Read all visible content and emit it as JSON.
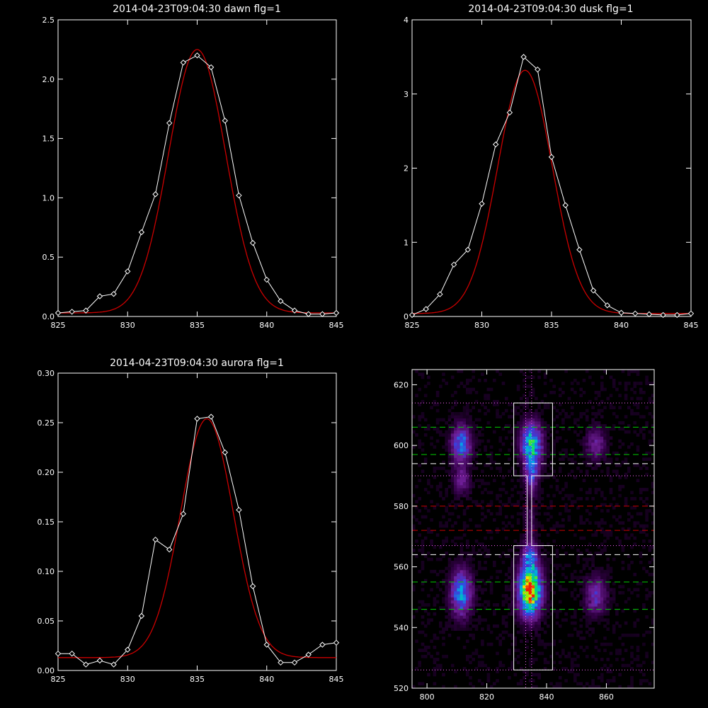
{
  "colors": {
    "background": "#000000",
    "axes": "#ffffff",
    "observed": "#ffffff",
    "fit": "#cc0000",
    "green_line": "#00cc00",
    "red_line": "#cc0000",
    "white_line": "#ffffff",
    "dotted_line": "#ff66ff"
  },
  "chart_data": [
    {
      "type": "line",
      "title": "2014-04-23T09:04:30 dawn flg=1",
      "xlim": [
        825,
        845
      ],
      "ylim": [
        0,
        2.5
      ],
      "xticks": [
        "825",
        "830",
        "835",
        "840",
        "845"
      ],
      "yticks": [
        "0.0",
        "0.5",
        "1.0",
        "1.5",
        "2.0",
        "2.5"
      ],
      "xtick_values": [
        825,
        830,
        835,
        840,
        845
      ],
      "ytick_values": [
        0,
        0.5,
        1.0,
        1.5,
        2.0,
        2.5
      ],
      "observed": {
        "x": [
          825,
          826,
          827,
          828,
          829,
          830,
          831,
          832,
          833,
          834,
          835,
          836,
          837,
          838,
          839,
          840,
          841,
          842,
          843,
          844,
          845
        ],
        "y": [
          0.03,
          0.04,
          0.05,
          0.17,
          0.19,
          0.38,
          0.71,
          1.03,
          1.63,
          2.14,
          2.2,
          2.1,
          1.65,
          1.02,
          0.62,
          0.31,
          0.13,
          0.05,
          0.02,
          0.02,
          0.03
        ]
      },
      "fit": {
        "amplitude": 2.22,
        "center": 835.0,
        "sigma": 2.05,
        "offset": 0.03
      }
    },
    {
      "type": "line",
      "title": "2014-04-23T09:04:30 dusk flg=1",
      "xlim": [
        825,
        845
      ],
      "ylim": [
        0,
        4
      ],
      "xticks": [
        "825",
        "830",
        "835",
        "840",
        "845"
      ],
      "yticks": [
        "0",
        "1",
        "2",
        "3",
        "4"
      ],
      "xtick_values": [
        825,
        830,
        835,
        840,
        845
      ],
      "ytick_values": [
        0,
        1,
        2,
        3,
        4
      ],
      "observed": {
        "x": [
          825,
          826,
          827,
          828,
          829,
          830,
          831,
          832,
          833,
          834,
          835,
          836,
          837,
          838,
          839,
          840,
          841,
          842,
          843,
          844,
          845
        ],
        "y": [
          0.02,
          0.1,
          0.3,
          0.7,
          0.9,
          1.52,
          2.32,
          2.75,
          3.5,
          3.33,
          2.15,
          1.5,
          0.9,
          0.35,
          0.15,
          0.05,
          0.04,
          0.03,
          0.02,
          0.02,
          0.04
        ]
      },
      "fit": {
        "amplitude": 3.28,
        "center": 833.1,
        "sigma": 1.95,
        "offset": 0.04
      }
    },
    {
      "type": "line",
      "title": "2014-04-23T09:04:30 aurora flg=1",
      "xlim": [
        825,
        845
      ],
      "ylim": [
        0,
        0.3
      ],
      "xticks": [
        "825",
        "830",
        "835",
        "840",
        "845"
      ],
      "yticks": [
        "0.00",
        "0.05",
        "0.10",
        "0.15",
        "0.20",
        "0.25",
        "0.30"
      ],
      "xtick_values": [
        825,
        830,
        835,
        840,
        845
      ],
      "ytick_values": [
        0,
        0.05,
        0.1,
        0.15,
        0.2,
        0.25,
        0.3
      ],
      "observed": {
        "x": [
          825,
          826,
          827,
          828,
          829,
          830,
          831,
          832,
          833,
          834,
          835,
          836,
          837,
          838,
          839,
          840,
          841,
          842,
          843,
          844,
          845
        ],
        "y": [
          0.017,
          0.017,
          0.006,
          0.01,
          0.006,
          0.021,
          0.055,
          0.132,
          0.122,
          0.158,
          0.254,
          0.256,
          0.22,
          0.162,
          0.085,
          0.026,
          0.008,
          0.008,
          0.016,
          0.026,
          0.028
        ]
      },
      "fit": {
        "amplitude": 0.241,
        "center": 835.7,
        "sigma": 1.9,
        "offset": 0.013
      }
    },
    {
      "type": "heatmap",
      "title": "",
      "xlim": [
        795,
        876
      ],
      "ylim": [
        520,
        625
      ],
      "xticks": [
        "800",
        "820",
        "840",
        "860"
      ],
      "yticks": [
        "520",
        "540",
        "560",
        "580",
        "600",
        "620"
      ],
      "xtick_values": [
        800,
        820,
        840,
        860
      ],
      "ytick_values": [
        520,
        540,
        560,
        580,
        600,
        620
      ],
      "blobs": [
        {
          "x": 811,
          "y": 600,
          "sx": 2.2,
          "sy": 4,
          "amp": 0.45
        },
        {
          "x": 811,
          "y": 588,
          "sx": 1.8,
          "sy": 3,
          "amp": 0.22
        },
        {
          "x": 834.5,
          "y": 600,
          "sx": 2.3,
          "sy": 4.5,
          "amp": 0.62
        },
        {
          "x": 834.5,
          "y": 590,
          "sx": 1.5,
          "sy": 4,
          "amp": 0.35
        },
        {
          "x": 834,
          "y": 574,
          "sx": 1.2,
          "sy": 5,
          "amp": 0.12
        },
        {
          "x": 856,
          "y": 600,
          "sx": 2.2,
          "sy": 3.5,
          "amp": 0.22
        },
        {
          "x": 811,
          "y": 551,
          "sx": 2.3,
          "sy": 5,
          "amp": 0.52
        },
        {
          "x": 834,
          "y": 552,
          "sx": 2.5,
          "sy": 5.5,
          "amp": 1.0
        },
        {
          "x": 834,
          "y": 563,
          "sx": 1.6,
          "sy": 3,
          "amp": 0.35
        },
        {
          "x": 856,
          "y": 550,
          "sx": 2.3,
          "sy": 4,
          "amp": 0.3
        }
      ],
      "green_dashed_y": [
        606,
        597,
        555,
        546
      ],
      "white_dashed_y": [
        594,
        564
      ],
      "red_dashed_y": [
        580,
        572
      ],
      "pink_dotted_y": [
        614,
        590,
        567,
        526
      ],
      "pink_dotted_x": [
        833,
        835
      ],
      "white_box": {
        "x_outer": [
          829,
          842
        ],
        "x_inner": [
          833.5,
          835
        ],
        "y_top": 614,
        "y_upper_bottom": 590,
        "y_lower_top": 567,
        "y_bottom": 526
      }
    }
  ]
}
